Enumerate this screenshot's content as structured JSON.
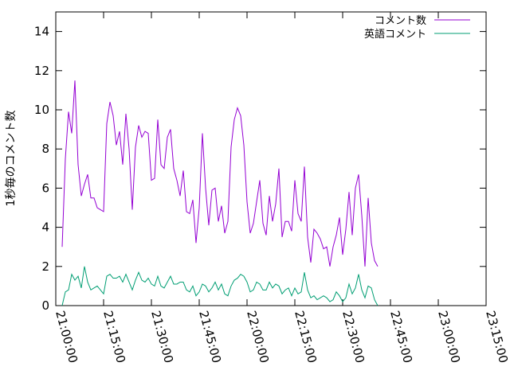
{
  "chart_data": {
    "type": "line",
    "ylabel": "1秒毎のコメント数",
    "xlabel": "",
    "title": "",
    "ylim": [
      0,
      15
    ],
    "yticks": [
      0,
      2,
      4,
      6,
      8,
      10,
      12,
      14
    ],
    "y_tick_labels": [
      "0",
      "2",
      "4",
      "6",
      "8",
      "10",
      "12",
      "14"
    ],
    "xlim_minutes": [
      1260,
      1395
    ],
    "xticks_minutes": [
      1260,
      1275,
      1290,
      1305,
      1320,
      1335,
      1350,
      1365,
      1380,
      1395
    ],
    "x_tick_labels": [
      "21:00:00",
      "21:15:00",
      "21:30:00",
      "21:45:00",
      "22:00:00",
      "22:15:00",
      "22:30:00",
      "22:45:00",
      "23:00:00",
      "23:15:00"
    ],
    "legend_position": "top-right",
    "grid": false,
    "x_start_minute": 1262,
    "x_step_minutes": 1,
    "series": [
      {
        "name": "コメント数",
        "color": "#9400d3",
        "values": [
          3.0,
          7.5,
          9.9,
          8.8,
          11.5,
          7.2,
          5.6,
          6.2,
          6.7,
          5.5,
          5.5,
          5.0,
          4.9,
          4.8,
          9.3,
          10.4,
          9.7,
          8.2,
          8.9,
          7.2,
          9.8,
          8.0,
          4.9,
          8.1,
          9.2,
          8.6,
          8.9,
          8.8,
          6.4,
          6.5,
          9.5,
          7.2,
          7.0,
          8.6,
          9.0,
          7.0,
          6.4,
          5.6,
          6.9,
          4.8,
          4.7,
          5.4,
          3.2,
          5.0,
          8.8,
          6.0,
          4.1,
          5.9,
          6.0,
          4.3,
          5.1,
          3.7,
          4.3,
          8.1,
          9.5,
          10.1,
          9.7,
          8.2,
          5.3,
          3.7,
          4.2,
          5.3,
          6.4,
          4.2,
          3.6,
          5.6,
          4.3,
          5.2,
          7.0,
          3.5,
          4.3,
          4.3,
          3.8,
          6.4,
          4.7,
          4.3,
          7.1,
          3.5,
          2.2,
          3.9,
          3.7,
          3.4,
          2.9,
          3.0,
          2.0,
          3.0,
          3.6,
          4.5,
          2.6,
          3.9,
          5.8,
          3.6,
          6.0,
          6.7,
          4.6,
          2.0,
          5.5,
          3.2,
          2.3,
          2.0
        ]
      },
      {
        "name": "英語コメント",
        "color": "#009e73",
        "values": [
          0.0,
          0.7,
          0.8,
          1.6,
          1.3,
          1.5,
          0.9,
          2.0,
          1.2,
          0.8,
          0.9,
          1.0,
          0.8,
          0.6,
          1.5,
          1.6,
          1.4,
          1.4,
          1.5,
          1.2,
          1.6,
          1.2,
          0.8,
          1.3,
          1.7,
          1.3,
          1.2,
          1.4,
          1.1,
          1.0,
          1.5,
          1.0,
          0.9,
          1.2,
          1.5,
          1.1,
          1.1,
          1.2,
          1.2,
          0.8,
          0.7,
          1.0,
          0.5,
          0.7,
          1.1,
          1.0,
          0.7,
          0.9,
          1.2,
          0.8,
          1.1,
          0.6,
          0.5,
          1.0,
          1.3,
          1.4,
          1.6,
          1.5,
          1.2,
          0.7,
          0.8,
          1.2,
          1.1,
          0.8,
          0.8,
          1.2,
          0.9,
          1.1,
          1.0,
          0.6,
          0.8,
          0.9,
          0.5,
          0.9,
          0.6,
          0.7,
          1.7,
          0.8,
          0.4,
          0.5,
          0.3,
          0.4,
          0.5,
          0.4,
          0.2,
          0.3,
          0.7,
          0.5,
          0.2,
          0.4,
          1.1,
          0.6,
          0.9,
          1.6,
          0.8,
          0.4,
          1.0,
          0.9,
          0.3,
          0.0
        ]
      }
    ]
  }
}
